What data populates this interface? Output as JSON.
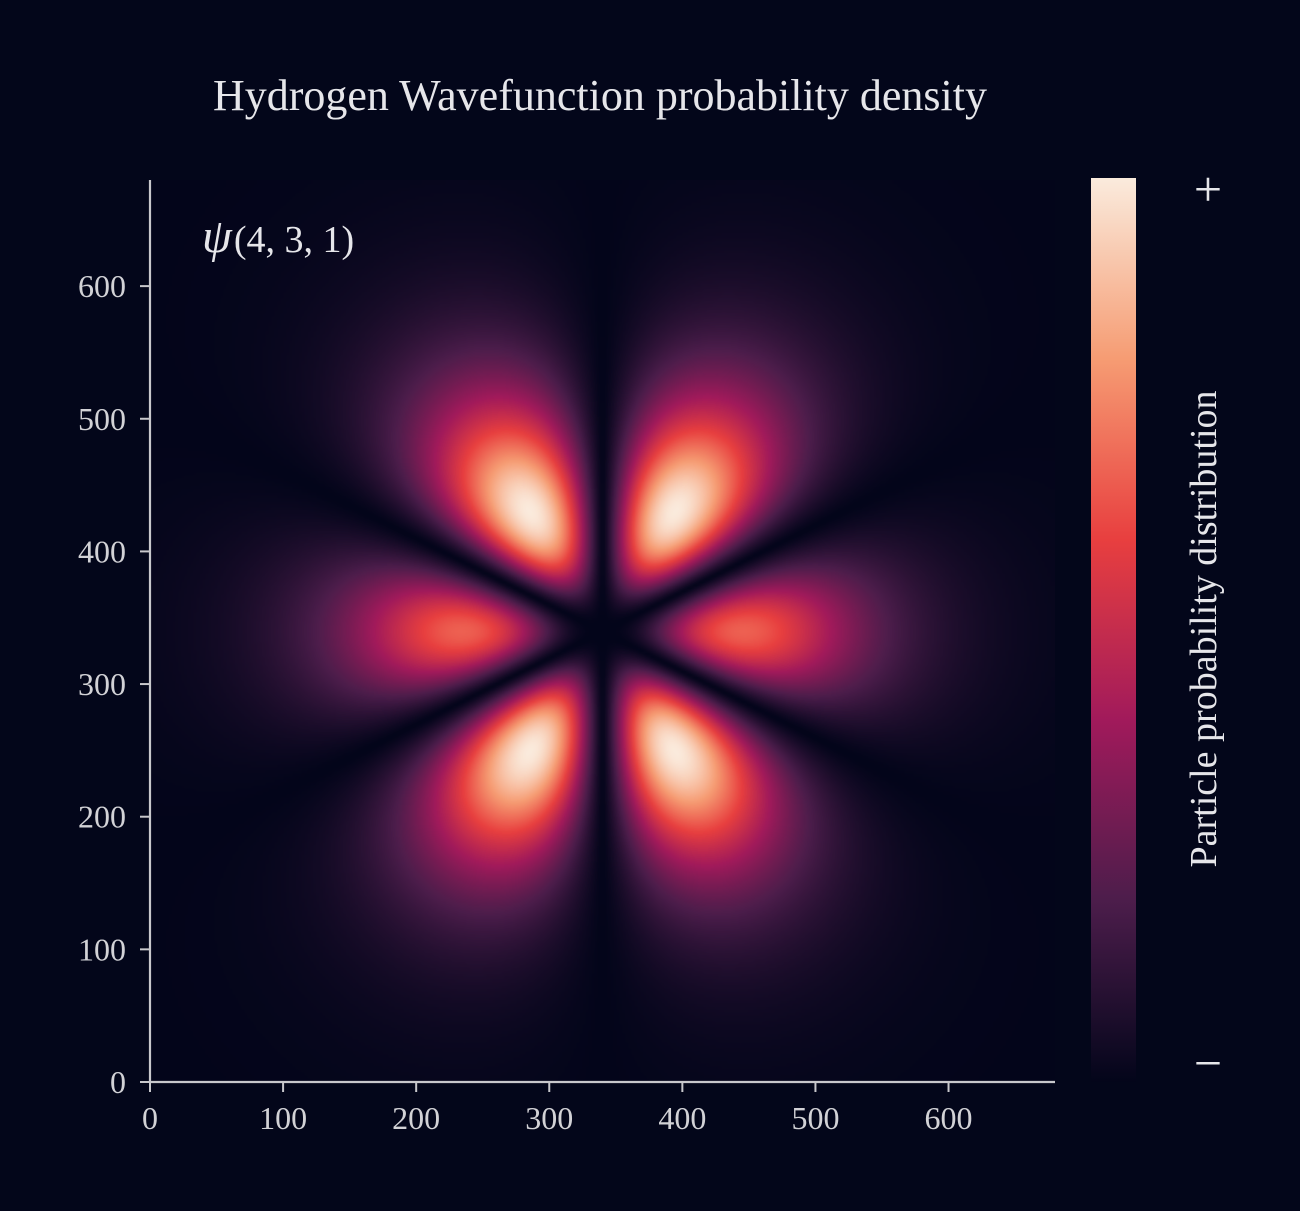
{
  "chart_data": {
    "type": "heatmap",
    "title": "Hydrogen Wavefunction probability density",
    "annotation": {
      "symbol": "ψ",
      "quantum_numbers": "(4, 3, 1)"
    },
    "quantum_numbers": {
      "n": 4,
      "l": 3,
      "m": 1
    },
    "xlim": [
      0,
      680
    ],
    "ylim": [
      0,
      680
    ],
    "x_ticks": [
      0,
      100,
      200,
      300,
      400,
      500,
      600
    ],
    "y_ticks": [
      0,
      100,
      200,
      300,
      400,
      500,
      600
    ],
    "grid": false,
    "colormap": "rocket",
    "colorbar": {
      "label": "Particle probability distribution",
      "max_label": "+",
      "min_label": "−",
      "colors": [
        "#03051a",
        "#4c1d4b",
        "#a11a5b",
        "#e83f3f",
        "#f69c73",
        "#faebdd"
      ]
    },
    "colors": {
      "background": "#03061a",
      "axis": "#c8c8cc",
      "text": "#e6e6ea"
    }
  }
}
